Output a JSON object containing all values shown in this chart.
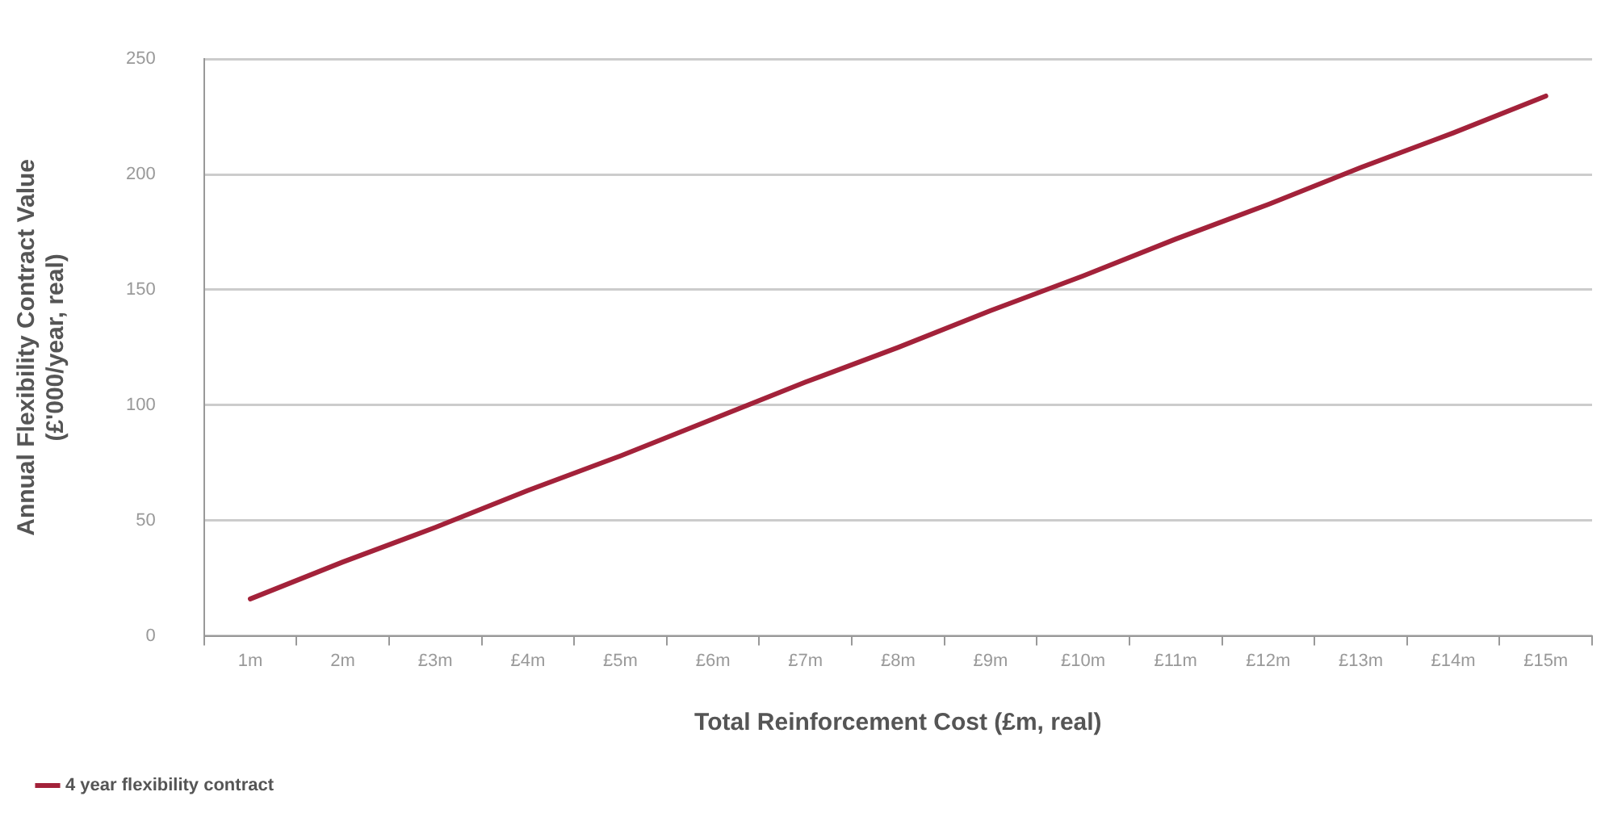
{
  "chart_data": {
    "type": "line",
    "xlabel": "Total Reinforcement Cost (£m, real)",
    "ylabel": "Annual Flexibility Contract Value\n(£'000/year, real)",
    "categories": [
      "1m",
      "2m",
      "£3m",
      "£4m",
      "£5m",
      "£6m",
      "£7m",
      "£8m",
      "£9m",
      "£10m",
      "£11m",
      "£12m",
      "£13m",
      "£14m",
      "£15m"
    ],
    "series": [
      {
        "name": "4 year flexibility contract",
        "color": "#a3223a",
        "values": [
          16,
          32,
          47,
          63,
          78,
          94,
          110,
          125,
          141,
          156,
          172,
          187,
          203,
          218,
          234
        ]
      }
    ],
    "ylim": [
      0,
      250
    ],
    "yticks": [
      0,
      50,
      100,
      150,
      200,
      250
    ],
    "grid": "y",
    "legend": "bottom left",
    "marker": "none",
    "line_style": "solid"
  }
}
